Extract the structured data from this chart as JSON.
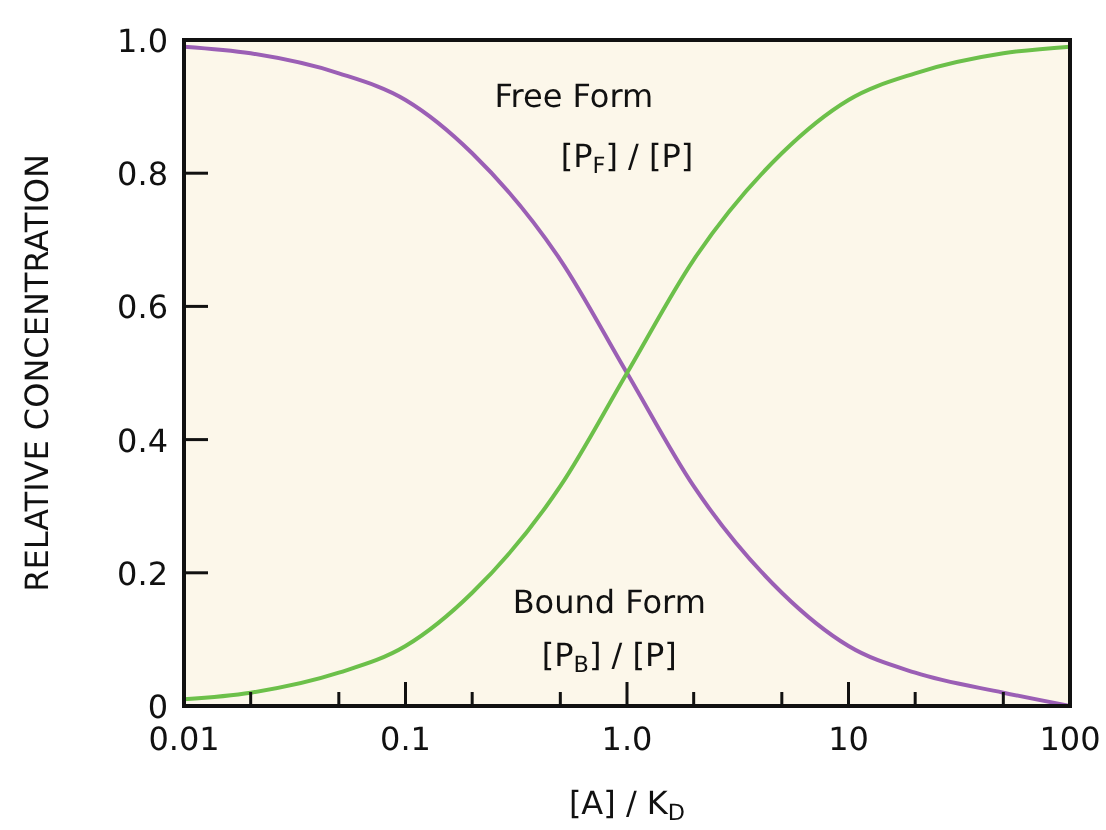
{
  "chart_data": {
    "type": "line",
    "xlabel": "[A] / K$_{D}$",
    "ylabel": "RELATIVE CONCENTRATION",
    "log": "x",
    "x": [
      0.01,
      0.02,
      0.05,
      0.1,
      0.2,
      0.5,
      1,
      2,
      5,
      10,
      20,
      50,
      100
    ],
    "series": [
      {
        "name": "Free Form",
        "color": "#9b5fb5",
        "values": [
          0.99,
          0.98,
          0.95,
          0.91,
          0.83,
          0.67,
          0.5,
          0.33,
          0.17,
          0.09,
          0.05,
          0.02,
          0.0
        ]
      },
      {
        "name": "Bound Form",
        "color": "#6cc04a",
        "values": [
          0.01,
          0.02,
          0.05,
          0.09,
          0.17,
          0.33,
          0.5,
          0.67,
          0.83,
          0.91,
          0.95,
          0.98,
          0.99
        ]
      }
    ],
    "xlim": [
      0.01,
      100
    ],
    "ylim": [
      0,
      1
    ],
    "xticks": [
      {
        "value": 0.01,
        "label": "0.01"
      },
      {
        "value": 0.02,
        "label": null
      },
      {
        "value": 0.05,
        "label": null
      },
      {
        "value": 0.1,
        "label": "0.1"
      },
      {
        "value": 0.2,
        "label": null
      },
      {
        "value": 0.5,
        "label": null
      },
      {
        "value": 1,
        "label": "1.0"
      },
      {
        "value": 2,
        "label": null
      },
      {
        "value": 5,
        "label": null
      },
      {
        "value": 10,
        "label": "10"
      },
      {
        "value": 20,
        "label": null
      },
      {
        "value": 50,
        "label": null
      },
      {
        "value": 100,
        "label": "100"
      }
    ],
    "yticks": [
      0,
      {
        "value": 0.2,
        "label": "0.2"
      },
      {
        "value": 0.4,
        "label": "0.4"
      },
      {
        "value": 0.6,
        "label": "0.6"
      },
      {
        "value": 0.8,
        "label": "0.8"
      },
      {
        "value": 1,
        "label": "1.0"
      }
    ],
    "grid": false,
    "marker": "none",
    "line_style": "solid",
    "annotations": [
      "[P$_{F}$] / [P]",
      "[P$_{B}$] / [P]"
    ]
  }
}
